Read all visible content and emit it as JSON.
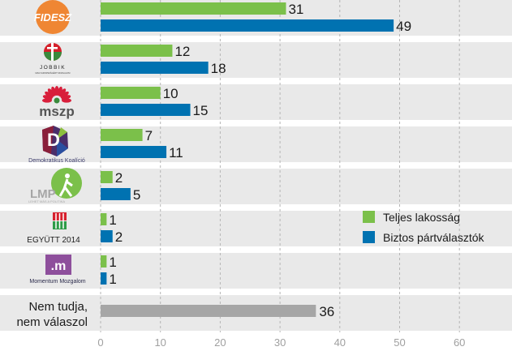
{
  "chart_data": {
    "type": "bar",
    "orientation": "horizontal",
    "categories": [
      "FIDESZ",
      "JOBBIK",
      "mszp",
      "Demokratikus Koalíció",
      "LMP",
      "EGYÜTT 2014",
      "Momentum Mozgalom",
      "Nem tudja, nem válaszol"
    ],
    "category_logo_text": {
      "jobbik_sub": "MAGYARORSZÁGÉRT MOZGALOM",
      "lmp_sub": "LEHET MÁS A POLITIKA",
      "momentum_mark": ".m"
    },
    "series": [
      {
        "name": "Teljes lakosság",
        "color": "#7bc04a",
        "values": [
          31,
          12,
          10,
          7,
          2,
          1,
          1,
          null
        ]
      },
      {
        "name": "Biztos pártválasztók",
        "color": "#0072b1",
        "values": [
          49,
          18,
          15,
          11,
          5,
          2,
          1,
          null
        ]
      }
    ],
    "undecided": {
      "value": 36,
      "color": "#a6a6a6"
    },
    "xlim": [
      0,
      67
    ],
    "xticks": [
      0,
      10,
      20,
      30,
      40,
      50,
      60
    ],
    "grid": "vertical dashed",
    "legend_position": "right",
    "title": "",
    "xlabel": "",
    "ylabel": ""
  },
  "colors": {
    "row_bg": "#e9e9e9",
    "fidesz": "#ef8633",
    "jobbik_red": "#d5202a",
    "jobbik_green": "#3a8a3c",
    "mszp_red": "#d81f3b",
    "lmp_green": "#7bc04a",
    "egyutt_red": "#d6202d",
    "egyutt_green": "#2e9b47",
    "momentum": "#8e4f9c"
  }
}
